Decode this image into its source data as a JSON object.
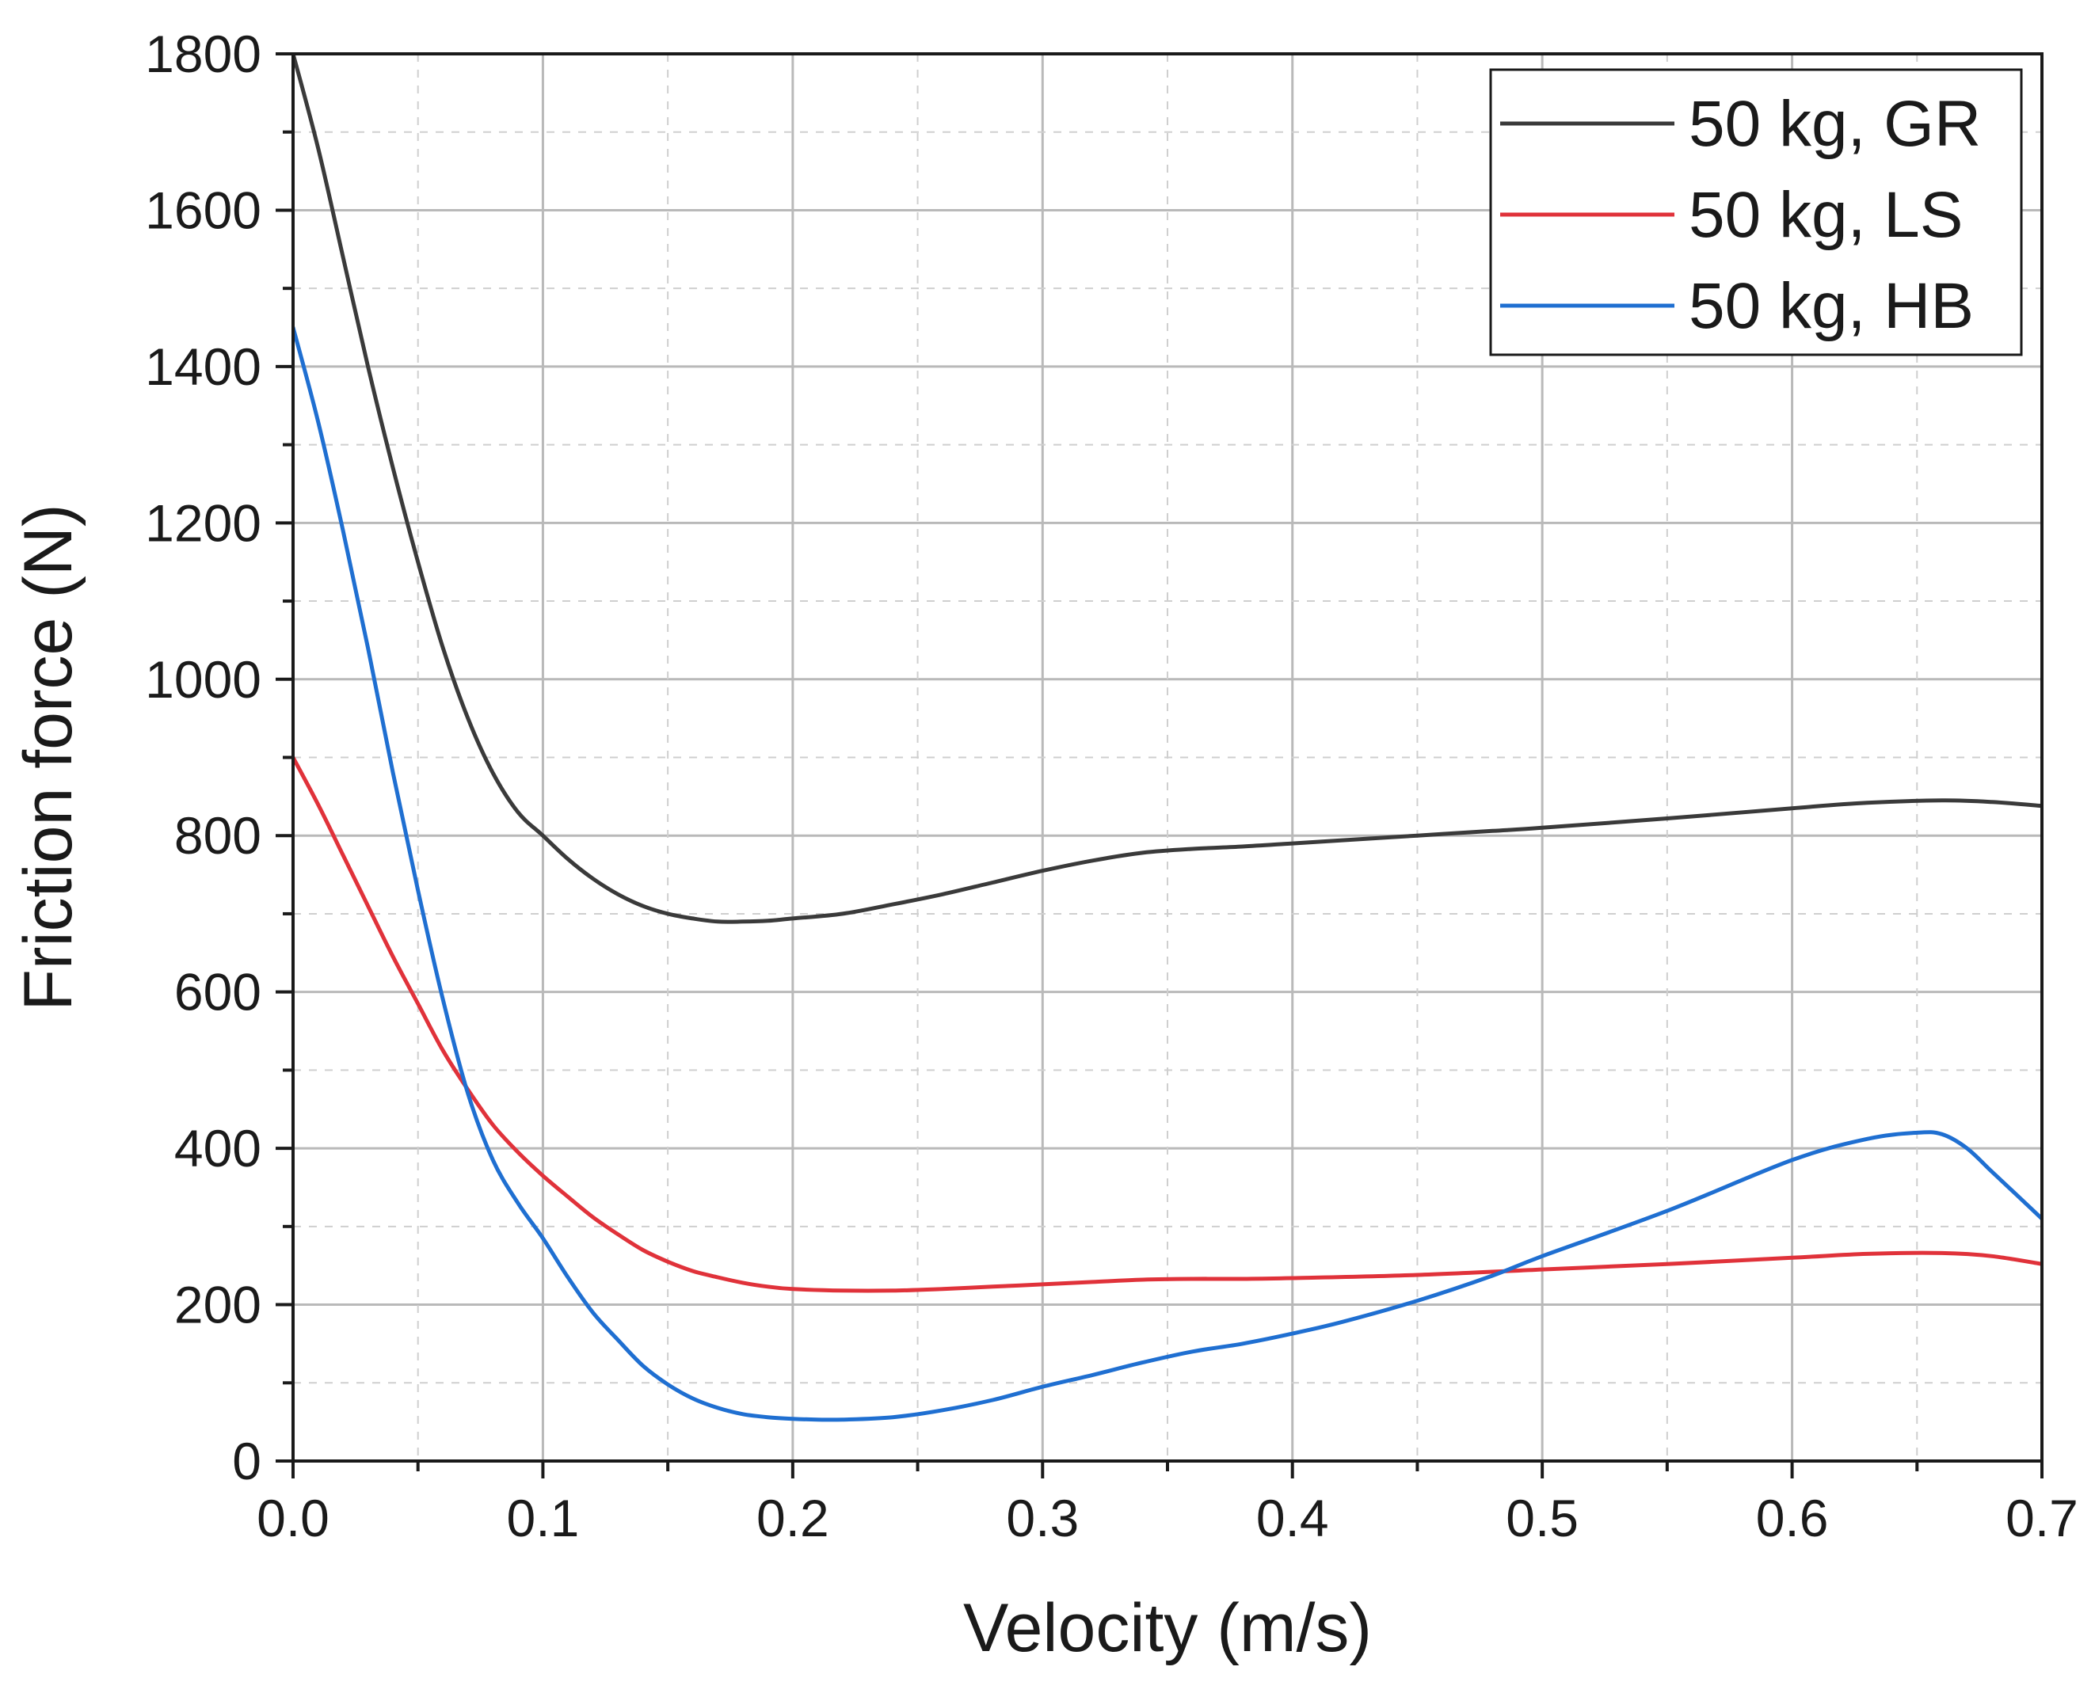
{
  "chart_data": {
    "type": "line",
    "title": "",
    "xlabel": "Velocity (m/s)",
    "ylabel": "Friction force (N)",
    "xlim": [
      0,
      0.7
    ],
    "ylim": [
      0,
      1800
    ],
    "x_ticks": [
      0.0,
      0.1,
      0.2,
      0.3,
      0.4,
      0.5,
      0.6,
      0.7
    ],
    "x_tick_labels": [
      "0.0",
      "0.1",
      "0.2",
      "0.3",
      "0.4",
      "0.5",
      "0.6",
      "0.7"
    ],
    "y_ticks": [
      0,
      200,
      400,
      600,
      800,
      1000,
      1200,
      1400,
      1600,
      1800
    ],
    "y_tick_labels": [
      "0",
      "200",
      "400",
      "600",
      "800",
      "1000",
      "1200",
      "1400",
      "1600",
      "1800"
    ],
    "grid": true,
    "legend_position": "top-right",
    "series": [
      {
        "name": "50 kg, GR",
        "color": "#3a3a3a",
        "x": [
          0.0,
          0.01,
          0.02,
          0.03,
          0.04,
          0.05,
          0.06,
          0.07,
          0.08,
          0.09,
          0.1,
          0.11,
          0.12,
          0.13,
          0.14,
          0.15,
          0.16,
          0.17,
          0.18,
          0.19,
          0.2,
          0.22,
          0.24,
          0.26,
          0.28,
          0.3,
          0.32,
          0.34,
          0.36,
          0.38,
          0.4,
          0.42,
          0.45,
          0.48,
          0.5,
          0.55,
          0.6,
          0.63,
          0.66,
          0.68,
          0.7
        ],
        "y": [
          1800,
          1680,
          1540,
          1400,
          1270,
          1150,
          1040,
          950,
          880,
          830,
          800,
          770,
          745,
          725,
          710,
          700,
          694,
          690,
          690,
          691,
          694,
          700,
          712,
          725,
          740,
          755,
          768,
          778,
          783,
          786,
          790,
          794,
          800,
          806,
          810,
          822,
          835,
          842,
          845,
          843,
          838
        ]
      },
      {
        "name": "50 kg, LS",
        "color": "#e0323a",
        "x": [
          0.0,
          0.01,
          0.02,
          0.03,
          0.04,
          0.05,
          0.06,
          0.07,
          0.08,
          0.09,
          0.1,
          0.11,
          0.12,
          0.13,
          0.14,
          0.15,
          0.16,
          0.17,
          0.18,
          0.19,
          0.2,
          0.22,
          0.24,
          0.26,
          0.28,
          0.3,
          0.32,
          0.34,
          0.36,
          0.38,
          0.4,
          0.45,
          0.5,
          0.55,
          0.6,
          0.63,
          0.66,
          0.68,
          0.7
        ],
        "y": [
          900,
          840,
          775,
          710,
          645,
          585,
          525,
          475,
          430,
          395,
          365,
          338,
          312,
          290,
          270,
          255,
          243,
          235,
          228,
          223,
          220,
          218,
          218,
          220,
          223,
          226,
          229,
          232,
          233,
          233,
          234,
          238,
          245,
          252,
          260,
          265,
          266,
          262,
          252
        ]
      },
      {
        "name": "50 kg, HB",
        "color": "#1f6fd1",
        "x": [
          0.0,
          0.01,
          0.02,
          0.03,
          0.04,
          0.05,
          0.06,
          0.07,
          0.08,
          0.09,
          0.1,
          0.11,
          0.12,
          0.13,
          0.14,
          0.15,
          0.16,
          0.17,
          0.18,
          0.19,
          0.2,
          0.21,
          0.22,
          0.24,
          0.26,
          0.28,
          0.3,
          0.32,
          0.34,
          0.36,
          0.38,
          0.4,
          0.42,
          0.45,
          0.48,
          0.5,
          0.55,
          0.6,
          0.63,
          0.65,
          0.66,
          0.67,
          0.68,
          0.69,
          0.7
        ],
        "y": [
          1450,
          1330,
          1190,
          1040,
          880,
          730,
          590,
          470,
          385,
          330,
          285,
          235,
          190,
          155,
          122,
          98,
          80,
          68,
          60,
          56,
          54,
          53,
          53,
          56,
          65,
          78,
          95,
          110,
          126,
          140,
          150,
          163,
          178,
          205,
          237,
          262,
          320,
          385,
          412,
          420,
          418,
          400,
          370,
          340,
          310
        ]
      }
    ]
  }
}
